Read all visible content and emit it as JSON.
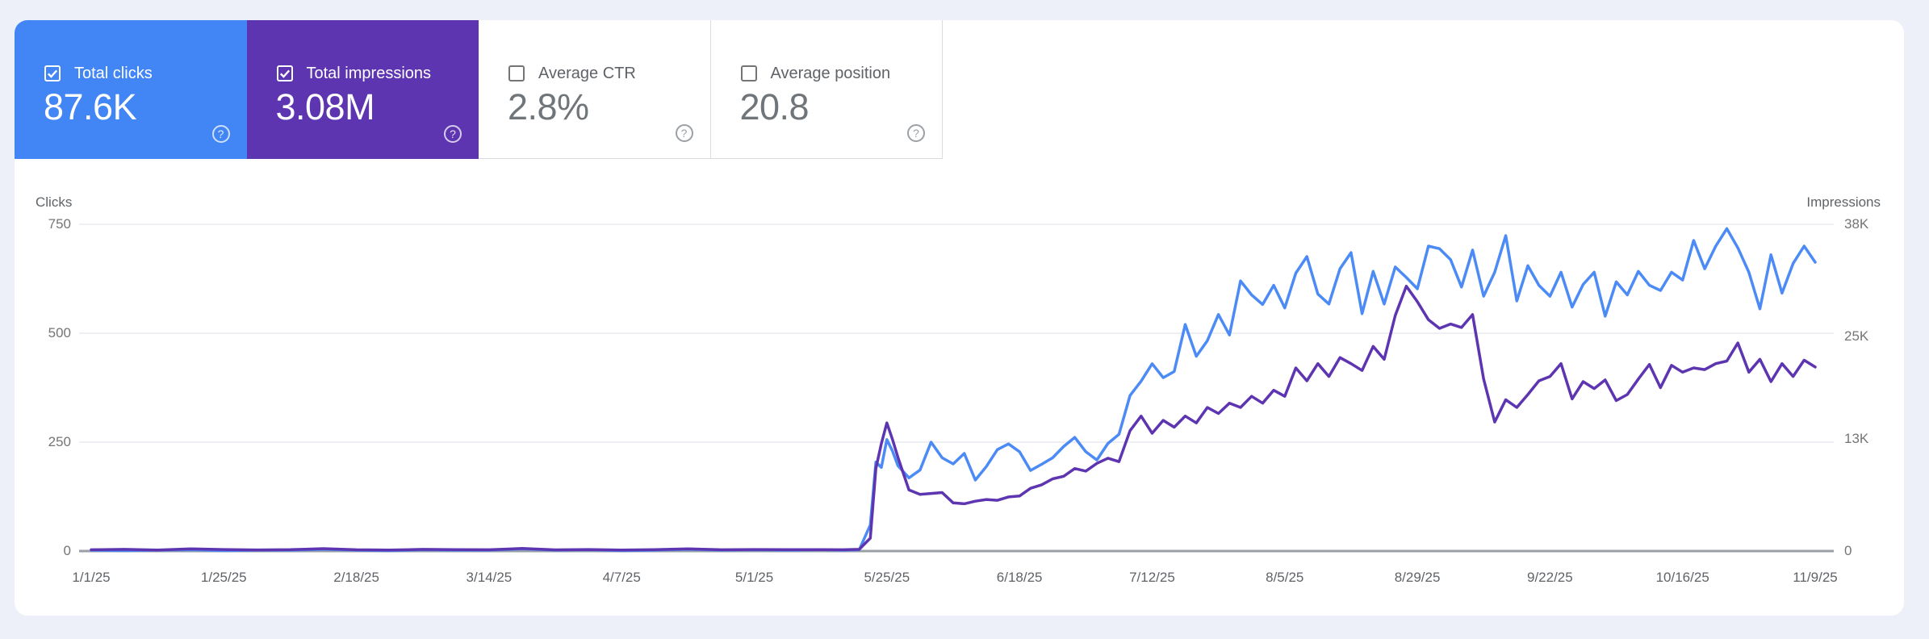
{
  "ui": {
    "help_glyph": "?",
    "page_background": "#edf0f8",
    "panel_background": "#ffffff",
    "card_border_color": "#dadce0"
  },
  "cards": [
    {
      "label": "Total clicks",
      "value": "87.6K",
      "checked": true,
      "selected": true,
      "background": "#4285f4"
    },
    {
      "label": "Total impressions",
      "value": "3.08M",
      "checked": true,
      "selected": true,
      "background": "#5e35b1"
    },
    {
      "label": "Average CTR",
      "value": "2.8%",
      "checked": false,
      "selected": false,
      "background": "#ffffff"
    },
    {
      "label": "Average position",
      "value": "20.8",
      "checked": false,
      "selected": false,
      "background": "#ffffff"
    }
  ],
  "chart_data": {
    "type": "line",
    "grid": "horizontal-only",
    "left_axis": {
      "title": "Clicks",
      "ticks": [
        0,
        250,
        500,
        750
      ],
      "tick_labels": [
        "0",
        "250",
        "500",
        "750"
      ],
      "max": 750
    },
    "right_axis": {
      "title": "Impressions",
      "ticks": [
        0,
        13000,
        25000,
        38000
      ],
      "tick_labels": [
        "0",
        "13K",
        "25K",
        "38K"
      ],
      "max": 38000
    },
    "x_axis": {
      "total_days": 312,
      "tick_days": [
        0,
        24,
        48,
        72,
        96,
        120,
        144,
        168,
        192,
        216,
        240,
        264,
        288,
        312
      ],
      "tick_labels": [
        "1/1/25",
        "1/25/25",
        "2/18/25",
        "3/14/25",
        "4/7/25",
        "5/1/25",
        "5/25/25",
        "6/18/25",
        "7/12/25",
        "8/5/25",
        "8/29/25",
        "9/22/25",
        "10/16/25",
        "11/9/25"
      ]
    },
    "days": [
      0,
      6,
      12,
      18,
      24,
      30,
      36,
      42,
      48,
      54,
      60,
      66,
      72,
      78,
      84,
      90,
      96,
      102,
      108,
      114,
      120,
      126,
      132,
      136,
      139,
      141,
      142,
      143,
      144,
      145,
      146,
      148,
      150,
      152,
      154,
      156,
      158,
      160,
      162,
      164,
      166,
      168,
      170,
      172,
      174,
      176,
      178,
      180,
      182,
      184,
      186,
      188,
      190,
      192,
      194,
      196,
      198,
      200,
      202,
      204,
      206,
      208,
      210,
      212,
      214,
      216,
      218,
      220,
      222,
      224,
      226,
      228,
      230,
      232,
      234,
      236,
      238,
      240,
      242,
      244,
      246,
      248,
      250,
      252,
      254,
      256,
      258,
      260,
      262,
      264,
      266,
      268,
      270,
      272,
      274,
      276,
      278,
      280,
      282,
      284,
      286,
      288,
      290,
      292,
      294,
      296,
      298,
      300,
      302,
      304,
      306,
      308,
      310,
      312
    ],
    "series": [
      {
        "name": "Clicks",
        "axis": "left",
        "color": "#4c8bf5",
        "values": [
          2,
          1,
          2,
          3,
          1,
          2,
          2,
          4,
          2,
          1,
          3,
          2,
          2,
          5,
          2,
          3,
          1,
          2,
          4,
          2,
          3,
          2,
          3,
          2,
          3,
          60,
          204,
          192,
          256,
          230,
          196,
          168,
          186,
          250,
          214,
          200,
          224,
          163,
          194,
          233,
          246,
          228,
          185,
          199,
          214,
          240,
          261,
          228,
          209,
          247,
          268,
          357,
          390,
          430,
          398,
          412,
          520,
          447,
          483,
          543,
          496,
          620,
          588,
          566,
          610,
          558,
          638,
          676,
          590,
          567,
          648,
          685,
          545,
          642,
          567,
          652,
          628,
          602,
          700,
          694,
          669,
          606,
          691,
          585,
          640,
          724,
          574,
          655,
          610,
          585,
          640,
          560,
          612,
          640,
          539,
          618,
          588,
          642,
          610,
          598,
          640,
          622,
          713,
          648,
          700,
          740,
          696,
          640,
          556,
          680,
          592,
          660,
          700,
          663
        ]
      },
      {
        "name": "Impressions",
        "axis": "right",
        "color": "#5e35b1",
        "values": [
          150,
          200,
          120,
          250,
          180,
          130,
          160,
          280,
          150,
          120,
          200,
          160,
          150,
          300,
          140,
          180,
          120,
          160,
          260,
          150,
          180,
          160,
          170,
          150,
          200,
          1500,
          9600,
          12500,
          14900,
          13000,
          10900,
          7100,
          6600,
          6700,
          6800,
          5600,
          5500,
          5800,
          6000,
          5900,
          6300,
          6400,
          7300,
          7700,
          8400,
          8700,
          9600,
          9300,
          10200,
          10800,
          10400,
          14000,
          15700,
          13700,
          15200,
          14400,
          15700,
          14900,
          16700,
          16000,
          17200,
          16700,
          18000,
          17200,
          18700,
          18000,
          21300,
          19800,
          21800,
          20300,
          22500,
          21800,
          21000,
          23800,
          22300,
          27400,
          30800,
          29000,
          26900,
          25900,
          26400,
          26000,
          27500,
          20000,
          15000,
          17600,
          16700,
          18200,
          19800,
          20300,
          21800,
          17700,
          19700,
          18900,
          19900,
          17500,
          18200,
          20000,
          21700,
          19000,
          21600,
          20800,
          21300,
          21100,
          21800,
          22100,
          24200,
          20800,
          22300,
          19700,
          21800,
          20300,
          22200,
          21400
        ]
      }
    ]
  }
}
